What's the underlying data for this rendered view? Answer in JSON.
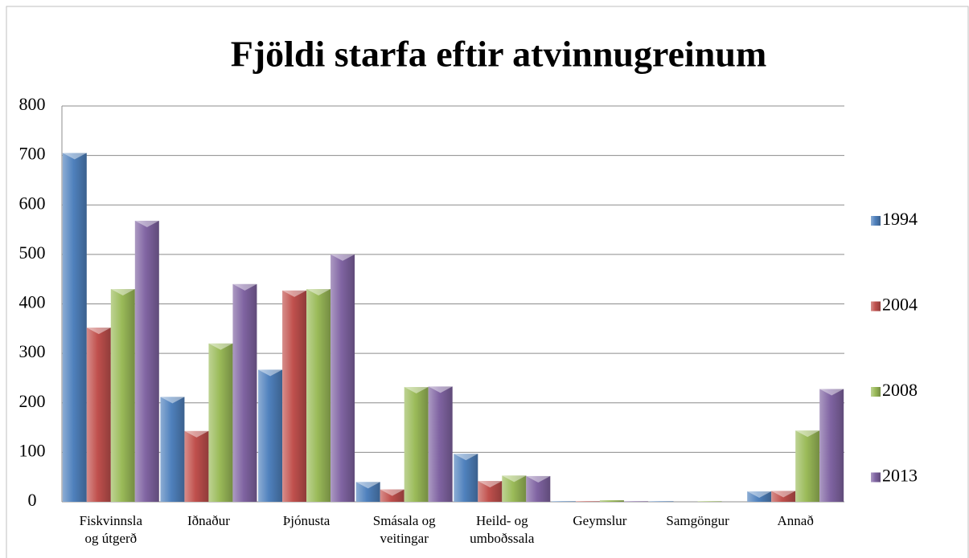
{
  "chart_data": {
    "type": "bar",
    "title": "Fjöldi starfa eftir atvinnugreinum",
    "categories": [
      "Fiskvinnsla\nog útgerð",
      "Iðnaður",
      "Þjónusta",
      "Smásala og\nveitingar",
      "Heild- og\numboðssala",
      "Geymslur",
      "Samgöngur",
      "Annað"
    ],
    "series": [
      {
        "name": "1994",
        "color": "#4f81bd",
        "values": [
          705,
          212,
          267,
          40,
          97,
          1,
          1,
          21
        ]
      },
      {
        "name": "2004",
        "color": "#c0504d",
        "values": [
          352,
          143,
          427,
          25,
          42,
          1,
          0,
          22
        ]
      },
      {
        "name": "2008",
        "color": "#9bbb59",
        "values": [
          430,
          320,
          430,
          232,
          53,
          3,
          1,
          144
        ]
      },
      {
        "name": "2013",
        "color": "#8064a2",
        "values": [
          568,
          440,
          500,
          233,
          52,
          1,
          0,
          228
        ]
      }
    ],
    "ylim": [
      0,
      800
    ],
    "yticks": [
      0,
      100,
      200,
      300,
      400,
      500,
      600,
      700,
      800
    ],
    "grid": true,
    "legend": "right"
  }
}
